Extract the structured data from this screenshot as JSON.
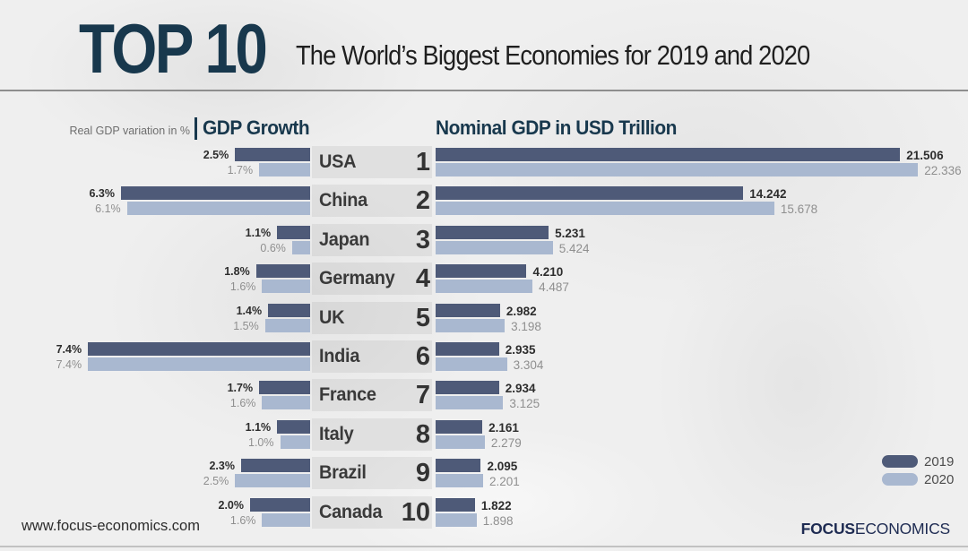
{
  "header": {
    "badge": "TOP 10",
    "subtitle": "The World’s Biggest Economies for 2019 and 2020"
  },
  "columns": {
    "left_note": "Real GDP variation in %",
    "left_title": "GDP Growth",
    "right_title": "Nominal GDP in USD Trillion"
  },
  "colors": {
    "bar_2019": "#4e5a78",
    "bar_2020": "#a9b8d0",
    "heading_navy": "#18384d",
    "logo_navy": "#1e2b52"
  },
  "legend": {
    "items": [
      {
        "label": "2019",
        "color": "#4e5a78"
      },
      {
        "label": "2020",
        "color": "#a9b8d0"
      }
    ]
  },
  "footer": {
    "website": "www.focus-economics.com",
    "brand_bold": "FOCUS",
    "brand_regular": "ECONOMICS"
  },
  "rows": [
    {
      "rank": "1",
      "country": "USA",
      "growth": {
        "y2019": "2.5%",
        "y2020": "1.7%"
      },
      "gdp": {
        "y2019": "21.506",
        "y2020": "22.336"
      }
    },
    {
      "rank": "2",
      "country": "China",
      "growth": {
        "y2019": "6.3%",
        "y2020": "6.1%"
      },
      "gdp": {
        "y2019": "14.242",
        "y2020": "15.678"
      }
    },
    {
      "rank": "3",
      "country": "Japan",
      "growth": {
        "y2019": "1.1%",
        "y2020": "0.6%"
      },
      "gdp": {
        "y2019": "5.231",
        "y2020": "5.424"
      }
    },
    {
      "rank": "4",
      "country": "Germany",
      "growth": {
        "y2019": "1.8%",
        "y2020": "1.6%"
      },
      "gdp": {
        "y2019": "4.210",
        "y2020": "4.487"
      }
    },
    {
      "rank": "5",
      "country": "UK",
      "growth": {
        "y2019": "1.4%",
        "y2020": "1.5%"
      },
      "gdp": {
        "y2019": "2.982",
        "y2020": "3.198"
      }
    },
    {
      "rank": "6",
      "country": "India",
      "growth": {
        "y2019": "7.4%",
        "y2020": "7.4%"
      },
      "gdp": {
        "y2019": "2.935",
        "y2020": "3.304"
      }
    },
    {
      "rank": "7",
      "country": "France",
      "growth": {
        "y2019": "1.7%",
        "y2020": "1.6%"
      },
      "gdp": {
        "y2019": "2.934",
        "y2020": "3.125"
      }
    },
    {
      "rank": "8",
      "country": "Italy",
      "growth": {
        "y2019": "1.1%",
        "y2020": "1.0%"
      },
      "gdp": {
        "y2019": "2.161",
        "y2020": "2.279"
      }
    },
    {
      "rank": "9",
      "country": "Brazil",
      "growth": {
        "y2019": "2.3%",
        "y2020": "2.5%"
      },
      "gdp": {
        "y2019": "2.095",
        "y2020": "2.201"
      }
    },
    {
      "rank": "10",
      "country": "Canada",
      "growth": {
        "y2019": "2.0%",
        "y2020": "1.6%"
      },
      "gdp": {
        "y2019": "1.822",
        "y2020": "1.898"
      }
    }
  ],
  "chart_data": {
    "type": "bar",
    "title": "TOP 10 — The World’s Biggest Economies for 2019 and 2020",
    "categories": [
      "USA",
      "China",
      "Japan",
      "Germany",
      "UK",
      "India",
      "France",
      "Italy",
      "Brazil",
      "Canada"
    ],
    "ranks": [
      1,
      2,
      3,
      4,
      5,
      6,
      7,
      8,
      9,
      10
    ],
    "legend_position": "bottom-right",
    "grid": false,
    "charts": [
      {
        "name": "GDP Growth",
        "unit": "Real GDP variation in %",
        "orientation": "horizontal-right-aligned",
        "series": [
          {
            "name": "2019",
            "values": [
              2.5,
              6.3,
              1.1,
              1.8,
              1.4,
              7.4,
              1.7,
              1.1,
              2.3,
              2.0
            ]
          },
          {
            "name": "2020",
            "values": [
              1.7,
              6.1,
              0.6,
              1.6,
              1.5,
              7.4,
              1.6,
              1.0,
              2.5,
              1.6
            ]
          }
        ]
      },
      {
        "name": "Nominal GDP in USD Trillion",
        "unit": "USD Trillion",
        "orientation": "horizontal-left-aligned",
        "series": [
          {
            "name": "2019",
            "values": [
              21.506,
              14.242,
              5.231,
              4.21,
              2.982,
              2.935,
              2.934,
              2.161,
              2.095,
              1.822
            ]
          },
          {
            "name": "2020",
            "values": [
              22.336,
              15.678,
              5.424,
              4.487,
              3.198,
              3.304,
              3.125,
              2.279,
              2.201,
              1.898
            ]
          }
        ]
      }
    ]
  }
}
